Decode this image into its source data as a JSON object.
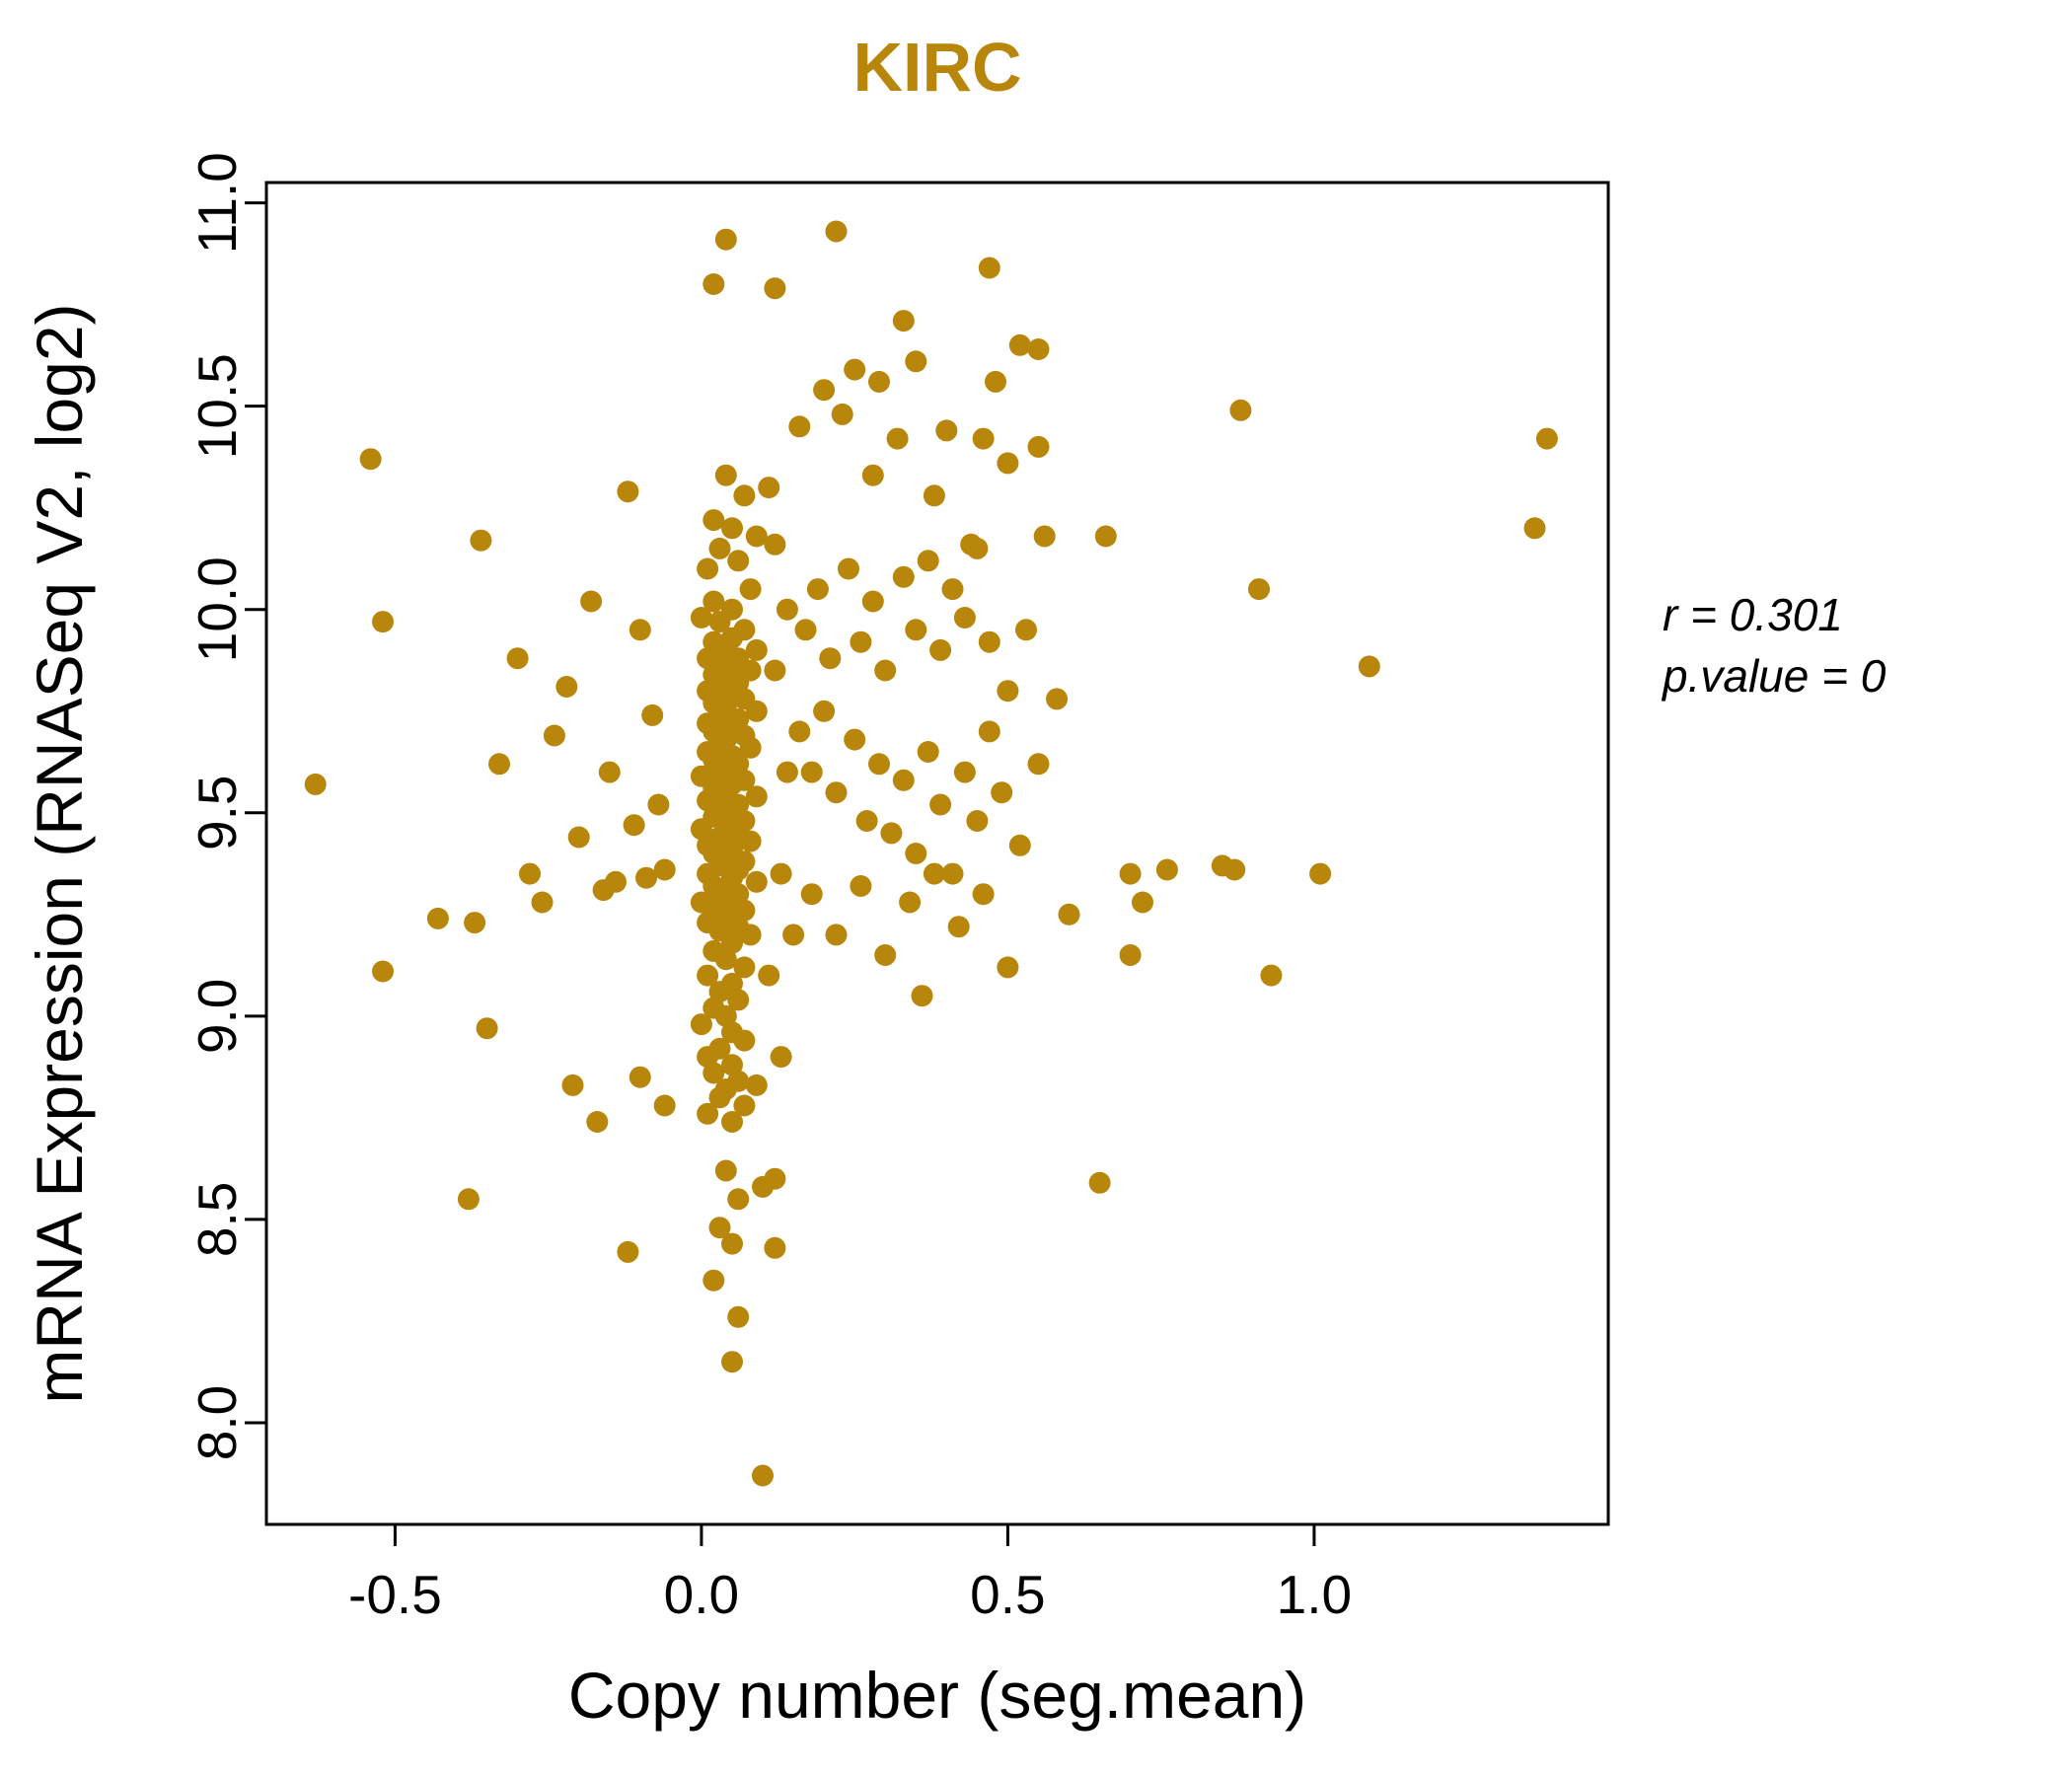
{
  "title": "KIRC",
  "annotation": {
    "line1": "r = 0.301",
    "line2": "p.value = 0"
  },
  "chart_data": {
    "type": "scatter",
    "title": "KIRC",
    "xlabel": "Copy number (seg.mean)",
    "ylabel": "mRNA Expression (RNASeq V2, log2)",
    "xlim": [
      -0.71,
      1.48
    ],
    "ylim": [
      7.75,
      11.05
    ],
    "xticks": [
      -0.5,
      0.0,
      0.5,
      1.0
    ],
    "yticks": [
      8.0,
      8.5,
      9.0,
      9.5,
      10.0,
      10.5,
      11.0
    ],
    "grid": false,
    "legend": "none",
    "point_color": "#B8860B",
    "title_color": "#B8860B",
    "annotations": [
      "r = 0.301",
      "p.value = 0"
    ],
    "points": [
      [
        -0.63,
        9.57
      ],
      [
        -0.54,
        10.37
      ],
      [
        -0.52,
        9.97
      ],
      [
        -0.52,
        9.11
      ],
      [
        -0.43,
        9.24
      ],
      [
        -0.38,
        8.55
      ],
      [
        -0.37,
        9.23
      ],
      [
        -0.36,
        10.17
      ],
      [
        -0.35,
        8.97
      ],
      [
        -0.33,
        9.62
      ],
      [
        -0.3,
        9.88
      ],
      [
        -0.28,
        9.35
      ],
      [
        -0.26,
        9.28
      ],
      [
        -0.24,
        9.69
      ],
      [
        -0.22,
        9.81
      ],
      [
        -0.21,
        8.83
      ],
      [
        -0.2,
        9.44
      ],
      [
        -0.18,
        10.02
      ],
      [
        -0.17,
        8.74
      ],
      [
        -0.16,
        9.31
      ],
      [
        -0.15,
        9.6
      ],
      [
        -0.14,
        9.33
      ],
      [
        -0.12,
        10.29
      ],
      [
        -0.12,
        8.42
      ],
      [
        -0.11,
        9.47
      ],
      [
        -0.1,
        8.85
      ],
      [
        -0.1,
        9.95
      ],
      [
        -0.09,
        9.34
      ],
      [
        -0.08,
        9.74
      ],
      [
        -0.07,
        9.52
      ],
      [
        -0.06,
        9.36
      ],
      [
        -0.06,
        8.78
      ],
      [
        0.04,
        10.33
      ],
      [
        0.07,
        10.28
      ],
      [
        0.02,
        10.22
      ],
      [
        0.05,
        10.2
      ],
      [
        0.09,
        10.18
      ],
      [
        0.03,
        10.15
      ],
      [
        0.06,
        10.12
      ],
      [
        0.01,
        10.1
      ],
      [
        0.12,
        10.16
      ],
      [
        0.08,
        10.05
      ],
      [
        0.02,
        10.02
      ],
      [
        0.05,
        10.0
      ],
      [
        0.0,
        9.98
      ],
      [
        0.03,
        9.97
      ],
      [
        0.07,
        9.95
      ],
      [
        0.05,
        9.93
      ],
      [
        0.02,
        9.92
      ],
      [
        0.09,
        9.9
      ],
      [
        0.04,
        9.9
      ],
      [
        0.06,
        9.88
      ],
      [
        0.01,
        9.88
      ],
      [
        0.03,
        9.86
      ],
      [
        0.05,
        9.85
      ],
      [
        0.08,
        9.85
      ],
      [
        0.02,
        9.84
      ],
      [
        0.04,
        9.83
      ],
      [
        0.06,
        9.82
      ],
      [
        0.03,
        9.81
      ],
      [
        0.01,
        9.8
      ],
      [
        0.05,
        9.79
      ],
      [
        0.07,
        9.78
      ],
      [
        0.02,
        9.77
      ],
      [
        0.04,
        9.76
      ],
      [
        0.09,
        9.75
      ],
      [
        0.03,
        9.74
      ],
      [
        0.06,
        9.73
      ],
      [
        0.01,
        9.72
      ],
      [
        0.05,
        9.71
      ],
      [
        0.02,
        9.7
      ],
      [
        0.07,
        9.69
      ],
      [
        0.04,
        9.68
      ],
      [
        0.03,
        9.67
      ],
      [
        0.08,
        9.66
      ],
      [
        0.01,
        9.65
      ],
      [
        0.05,
        9.64
      ],
      [
        0.02,
        9.63
      ],
      [
        0.06,
        9.62
      ],
      [
        0.04,
        9.61
      ],
      [
        0.03,
        9.6
      ],
      [
        0.0,
        9.59
      ],
      [
        0.07,
        9.58
      ],
      [
        0.05,
        9.57
      ],
      [
        0.02,
        9.56
      ],
      [
        0.04,
        9.55
      ],
      [
        0.09,
        9.54
      ],
      [
        0.01,
        9.53
      ],
      [
        0.06,
        9.52
      ],
      [
        0.03,
        9.51
      ],
      [
        0.05,
        9.5
      ],
      [
        0.02,
        9.49
      ],
      [
        0.07,
        9.48
      ],
      [
        0.04,
        9.47
      ],
      [
        0.0,
        9.46
      ],
      [
        0.06,
        9.45
      ],
      [
        0.03,
        9.44
      ],
      [
        0.08,
        9.43
      ],
      [
        0.01,
        9.42
      ],
      [
        0.05,
        9.41
      ],
      [
        0.02,
        9.4
      ],
      [
        0.04,
        9.39
      ],
      [
        0.07,
        9.38
      ],
      [
        0.03,
        9.37
      ],
      [
        0.06,
        9.36
      ],
      [
        0.01,
        9.35
      ],
      [
        0.05,
        9.34
      ],
      [
        0.09,
        9.33
      ],
      [
        0.02,
        9.32
      ],
      [
        0.04,
        9.31
      ],
      [
        0.06,
        9.3
      ],
      [
        0.03,
        9.29
      ],
      [
        0.0,
        9.28
      ],
      [
        0.05,
        9.27
      ],
      [
        0.07,
        9.26
      ],
      [
        0.02,
        9.25
      ],
      [
        0.04,
        9.24
      ],
      [
        0.01,
        9.23
      ],
      [
        0.06,
        9.22
      ],
      [
        0.03,
        9.21
      ],
      [
        0.08,
        9.2
      ],
      [
        0.05,
        9.18
      ],
      [
        0.02,
        9.16
      ],
      [
        0.04,
        9.14
      ],
      [
        0.07,
        9.12
      ],
      [
        0.01,
        9.1
      ],
      [
        0.05,
        9.08
      ],
      [
        0.03,
        9.06
      ],
      [
        0.06,
        9.04
      ],
      [
        0.02,
        9.02
      ],
      [
        0.04,
        9.0
      ],
      [
        0.0,
        8.98
      ],
      [
        0.05,
        8.96
      ],
      [
        0.07,
        8.94
      ],
      [
        0.03,
        8.92
      ],
      [
        0.01,
        8.9
      ],
      [
        0.05,
        8.88
      ],
      [
        0.02,
        8.86
      ],
      [
        0.06,
        8.84
      ],
      [
        0.04,
        8.82
      ],
      [
        0.03,
        8.8
      ],
      [
        0.07,
        8.78
      ],
      [
        0.01,
        8.76
      ],
      [
        0.05,
        8.74
      ],
      [
        0.09,
        8.83
      ],
      [
        0.04,
        8.62
      ],
      [
        0.06,
        8.55
      ],
      [
        0.03,
        8.48
      ],
      [
        0.05,
        8.44
      ],
      [
        0.1,
        8.58
      ],
      [
        0.02,
        8.35
      ],
      [
        0.06,
        8.26
      ],
      [
        0.05,
        8.15
      ],
      [
        0.1,
        7.87
      ],
      [
        0.12,
        9.85
      ],
      [
        0.14,
        9.6
      ],
      [
        0.13,
        9.35
      ],
      [
        0.11,
        9.1
      ],
      [
        0.13,
        8.9
      ],
      [
        0.12,
        8.6
      ],
      [
        0.14,
        10.0
      ],
      [
        0.11,
        10.3
      ],
      [
        0.15,
        9.2
      ],
      [
        0.12,
        8.43
      ],
      [
        0.04,
        10.91
      ],
      [
        0.22,
        10.93
      ],
      [
        0.02,
        10.8
      ],
      [
        0.12,
        10.79
      ],
      [
        0.47,
        10.84
      ],
      [
        0.33,
        10.71
      ],
      [
        0.55,
        10.64
      ],
      [
        0.25,
        10.59
      ],
      [
        0.2,
        10.54
      ],
      [
        0.29,
        10.56
      ],
      [
        0.48,
        10.56
      ],
      [
        0.16,
        10.45
      ],
      [
        0.23,
        10.48
      ],
      [
        0.28,
        10.33
      ],
      [
        0.32,
        10.42
      ],
      [
        0.35,
        10.61
      ],
      [
        0.38,
        10.28
      ],
      [
        0.4,
        10.44
      ],
      [
        0.44,
        10.16
      ],
      [
        0.46,
        10.42
      ],
      [
        0.5,
        10.36
      ],
      [
        0.52,
        10.65
      ],
      [
        0.55,
        10.4
      ],
      [
        0.17,
        9.95
      ],
      [
        0.19,
        10.05
      ],
      [
        0.21,
        9.88
      ],
      [
        0.24,
        10.1
      ],
      [
        0.26,
        9.92
      ],
      [
        0.28,
        10.02
      ],
      [
        0.3,
        9.85
      ],
      [
        0.33,
        10.08
      ],
      [
        0.35,
        9.95
      ],
      [
        0.37,
        10.12
      ],
      [
        0.39,
        9.9
      ],
      [
        0.41,
        10.05
      ],
      [
        0.43,
        9.98
      ],
      [
        0.45,
        10.15
      ],
      [
        0.47,
        9.92
      ],
      [
        0.5,
        9.8
      ],
      [
        0.53,
        9.95
      ],
      [
        0.56,
        10.18
      ],
      [
        0.16,
        9.7
      ],
      [
        0.18,
        9.6
      ],
      [
        0.2,
        9.75
      ],
      [
        0.22,
        9.55
      ],
      [
        0.25,
        9.68
      ],
      [
        0.27,
        9.48
      ],
      [
        0.29,
        9.62
      ],
      [
        0.31,
        9.45
      ],
      [
        0.33,
        9.58
      ],
      [
        0.35,
        9.4
      ],
      [
        0.37,
        9.65
      ],
      [
        0.39,
        9.52
      ],
      [
        0.41,
        9.35
      ],
      [
        0.43,
        9.6
      ],
      [
        0.45,
        9.48
      ],
      [
        0.47,
        9.7
      ],
      [
        0.49,
        9.55
      ],
      [
        0.52,
        9.42
      ],
      [
        0.55,
        9.62
      ],
      [
        0.58,
        9.78
      ],
      [
        0.18,
        9.3
      ],
      [
        0.22,
        9.2
      ],
      [
        0.26,
        9.32
      ],
      [
        0.3,
        9.15
      ],
      [
        0.34,
        9.28
      ],
      [
        0.38,
        9.35
      ],
      [
        0.42,
        9.22
      ],
      [
        0.46,
        9.3
      ],
      [
        0.5,
        9.12
      ],
      [
        0.36,
        9.05
      ],
      [
        0.6,
        9.25
      ],
      [
        0.65,
        8.59
      ],
      [
        0.66,
        10.18
      ],
      [
        0.7,
        9.35
      ],
      [
        0.72,
        9.28
      ],
      [
        0.76,
        9.36
      ],
      [
        0.7,
        9.15
      ],
      [
        0.85,
        9.37
      ],
      [
        0.87,
        9.36
      ],
      [
        0.88,
        10.49
      ],
      [
        0.91,
        10.05
      ],
      [
        0.93,
        9.1
      ],
      [
        1.01,
        9.35
      ],
      [
        1.09,
        9.86
      ],
      [
        1.36,
        10.2
      ],
      [
        1.38,
        10.42
      ]
    ]
  }
}
